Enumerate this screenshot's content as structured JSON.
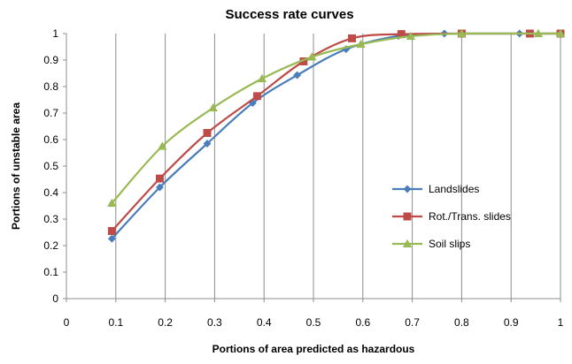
{
  "chart_data": {
    "type": "line",
    "title": "Success rate curves",
    "xlabel": "Portions of area predicted as hazardous",
    "ylabel": "Portions of unstable area",
    "xlim": [
      0,
      1
    ],
    "ylim": [
      0,
      1
    ],
    "x_ticks": [
      "0",
      "0.1",
      "0.2",
      "0.3",
      "0.4",
      "0.5",
      "0.6",
      "0.7",
      "0.8",
      "0.9",
      "1"
    ],
    "y_ticks": [
      "0",
      "0.1",
      "0.2",
      "0.3",
      "0.4",
      "0.5",
      "0.6",
      "0.7",
      "0.8",
      "0.9",
      "1"
    ],
    "grid": {
      "vertical": true,
      "horizontal": false
    },
    "legend_position": "right",
    "series": [
      {
        "name": "Landslides",
        "color": "#4a7ebb",
        "marker": "diamond",
        "x": [
          0.092,
          0.189,
          0.285,
          0.377,
          0.467,
          0.566,
          0.672,
          0.765,
          0.917,
          1.0
        ],
        "y": [
          0.226,
          0.42,
          0.585,
          0.738,
          0.843,
          0.941,
          0.991,
          1.0,
          1.0,
          1.0
        ]
      },
      {
        "name": "Rot./Trans. slides",
        "color": "#be4b48",
        "marker": "square",
        "x": [
          0.092,
          0.189,
          0.285,
          0.386,
          0.48,
          0.578,
          0.678,
          0.8,
          0.938,
          1.0
        ],
        "y": [
          0.255,
          0.453,
          0.625,
          0.764,
          0.895,
          0.982,
          0.998,
          1.0,
          1.0,
          1.0
        ]
      },
      {
        "name": "Soil slips",
        "color": "#98b954",
        "marker": "triangle",
        "x": [
          0.092,
          0.194,
          0.297,
          0.396,
          0.497,
          0.596,
          0.697,
          0.8,
          0.955,
          1.0
        ],
        "y": [
          0.36,
          0.575,
          0.72,
          0.83,
          0.912,
          0.96,
          0.99,
          1.0,
          1.0,
          1.0
        ]
      }
    ]
  }
}
